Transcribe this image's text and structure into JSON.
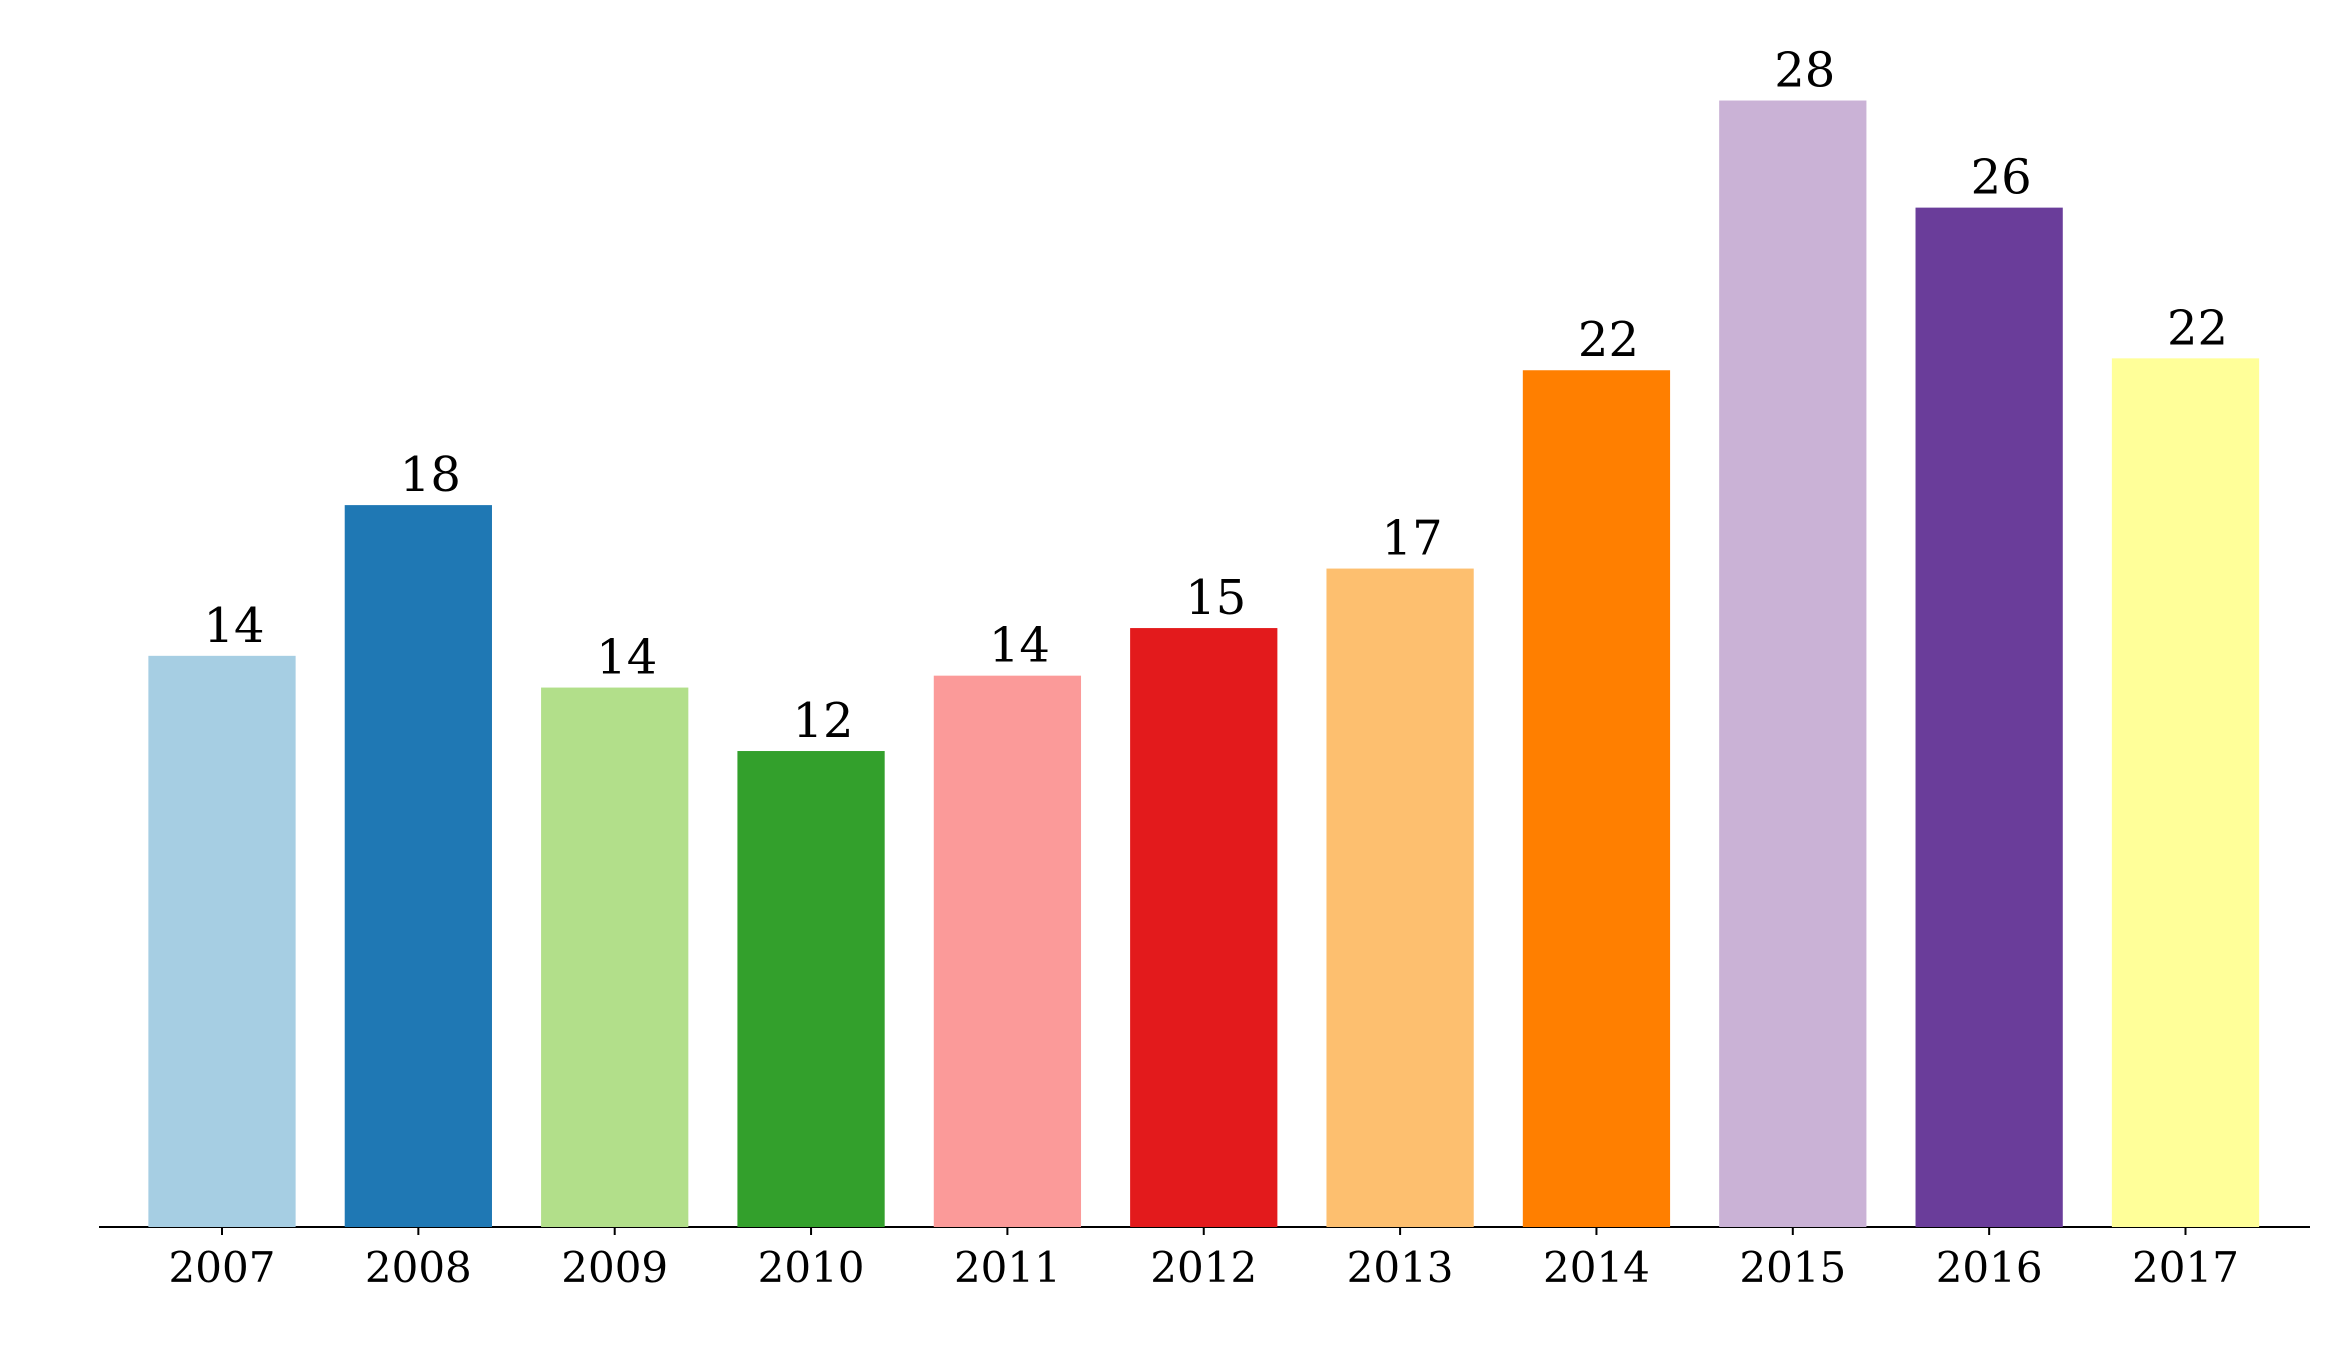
{
  "chart_data": {
    "type": "bar",
    "categories": [
      "2007",
      "2008",
      "2009",
      "2010",
      "2011",
      "2012",
      "2013",
      "2014",
      "2015",
      "2016",
      "2017"
    ],
    "values": [
      14.4,
      18.2,
      13.6,
      12.0,
      13.9,
      15.1,
      16.6,
      21.6,
      28.4,
      25.7,
      21.9
    ],
    "value_labels": [
      "14",
      "18",
      "14",
      "12",
      "14",
      "15",
      "17",
      "22",
      "28",
      "26",
      "22"
    ],
    "colors": [
      "#a6cee3",
      "#1f78b4",
      "#b2df8a",
      "#33a02c",
      "#fb9a99",
      "#e31a1c",
      "#fdbf6f",
      "#ff7f00",
      "#cab2d6",
      "#6a3d9a",
      "#ffff99"
    ],
    "ylim": [
      0,
      29.8
    ]
  }
}
